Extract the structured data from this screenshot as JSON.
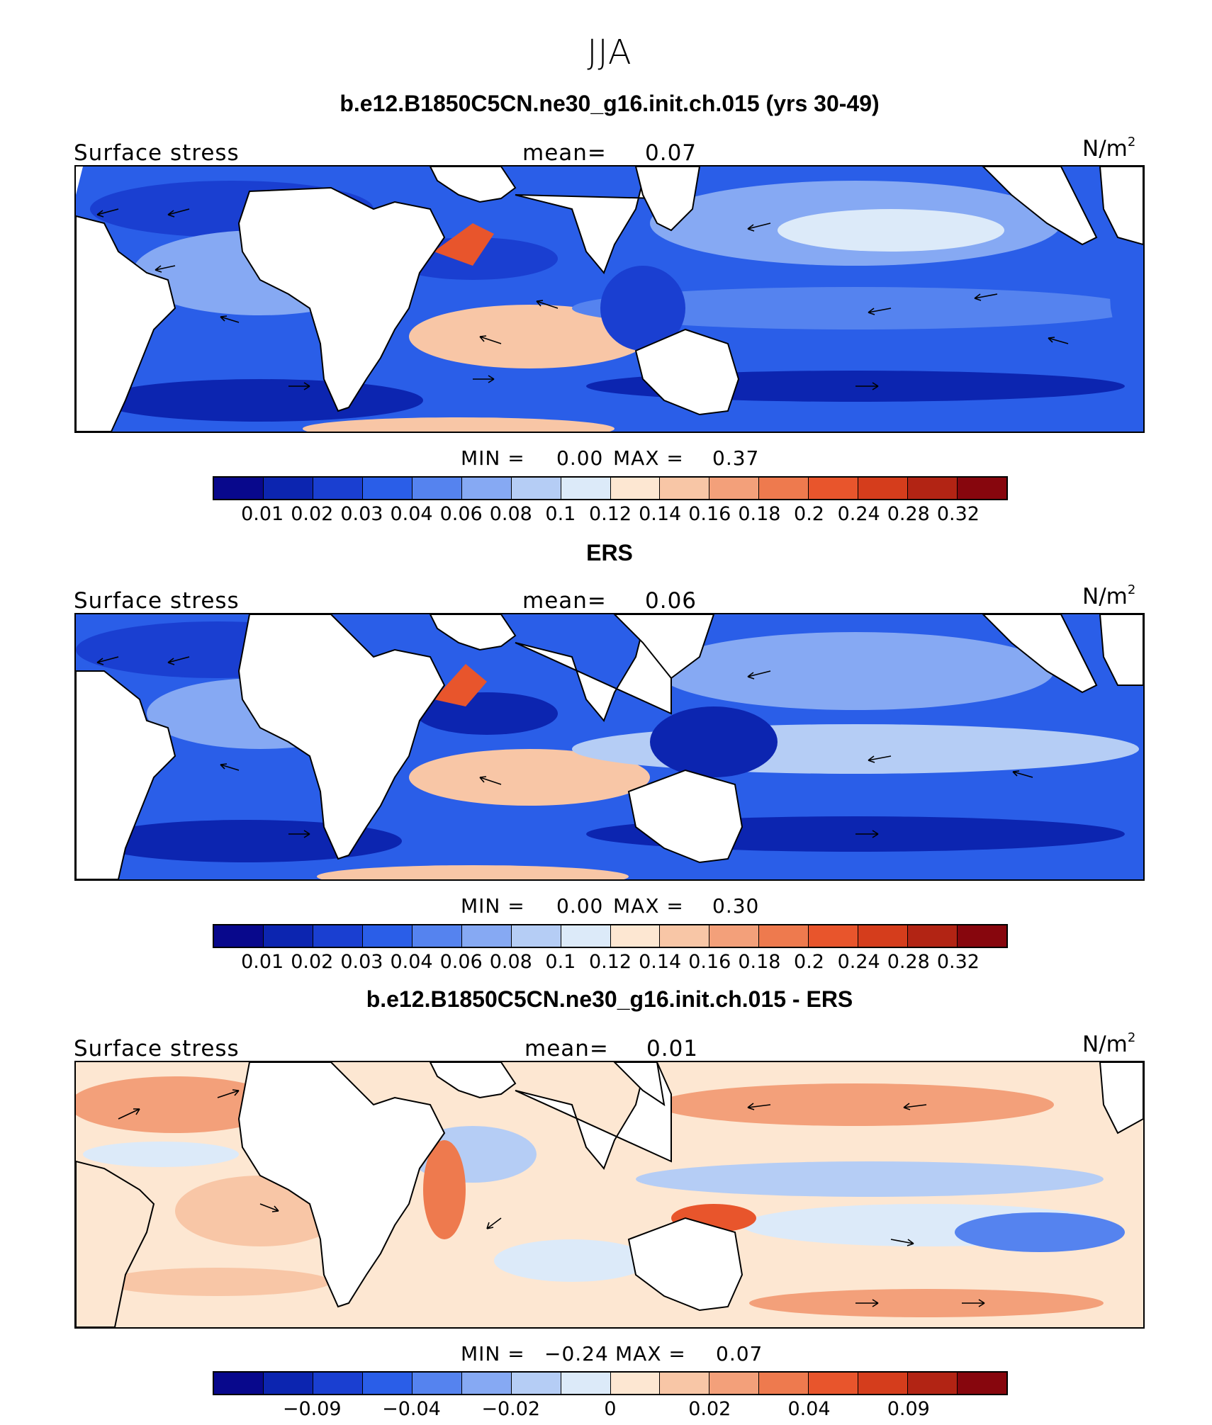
{
  "figure": {
    "title": "JJA"
  },
  "colors": {
    "positive_cmap": [
      "#08088c",
      "#0c25b0",
      "#1a3fd1",
      "#2a5ee8",
      "#5583ef",
      "#86a9f3",
      "#b5cdf5",
      "#dceaf9",
      "#fde7d2",
      "#f8c6a6",
      "#f3a07a",
      "#ee7a4e",
      "#e8552c",
      "#d53d1c",
      "#b22414",
      "#87060d"
    ],
    "diff_cmap": [
      "#08088c",
      "#0c25b0",
      "#1a3fd1",
      "#2a5ee8",
      "#5583ef",
      "#86a9f3",
      "#b5cdf5",
      "#dceaf9",
      "#fde7d2",
      "#f8c6a6",
      "#f3a07a",
      "#ee7a4e",
      "#e8552c",
      "#d53d1c",
      "#b22414",
      "#87060d"
    ]
  },
  "panels": [
    {
      "title": "b.e12.B1850C5CN.ne30_g16.init.ch.015 (yrs 30-49)",
      "left_label": "Surface stress",
      "mean_label": "mean=",
      "mean_value": "0.07",
      "units": "N/m",
      "units_sup": "2",
      "min_label": "MIN =",
      "min_value": "0.00",
      "max_label": "MAX =",
      "max_value": "0.37",
      "colorbar_ticks": [
        "0.01",
        "0.02",
        "0.03",
        "0.04",
        "0.06",
        "0.08",
        "0.1",
        "0.12",
        "0.14",
        "0.16",
        "0.18",
        "0.2",
        "0.24",
        "0.28",
        "0.32"
      ]
    },
    {
      "title": "ERS",
      "left_label": "Surface stress",
      "mean_label": "mean=",
      "mean_value": "0.06",
      "units": "N/m",
      "units_sup": "2",
      "min_label": "MIN =",
      "min_value": "0.00",
      "max_label": "MAX =",
      "max_value": "0.30",
      "colorbar_ticks": [
        "0.01",
        "0.02",
        "0.03",
        "0.04",
        "0.06",
        "0.08",
        "0.1",
        "0.12",
        "0.14",
        "0.16",
        "0.18",
        "0.2",
        "0.24",
        "0.28",
        "0.32"
      ]
    },
    {
      "title": "b.e12.B1850C5CN.ne30_g16.init.ch.015 - ERS",
      "left_label": "Surface stress",
      "mean_label": "mean=",
      "mean_value": "0.01",
      "units": "N/m",
      "units_sup": "2",
      "min_label": "MIN =",
      "min_value": "−0.24",
      "max_label": "MAX =",
      "max_value": "0.07",
      "colorbar_ticks": [
        "−0.09",
        "−0.04",
        "−0.02",
        "0",
        "0.02",
        "0.04",
        "0.09"
      ]
    }
  ]
}
